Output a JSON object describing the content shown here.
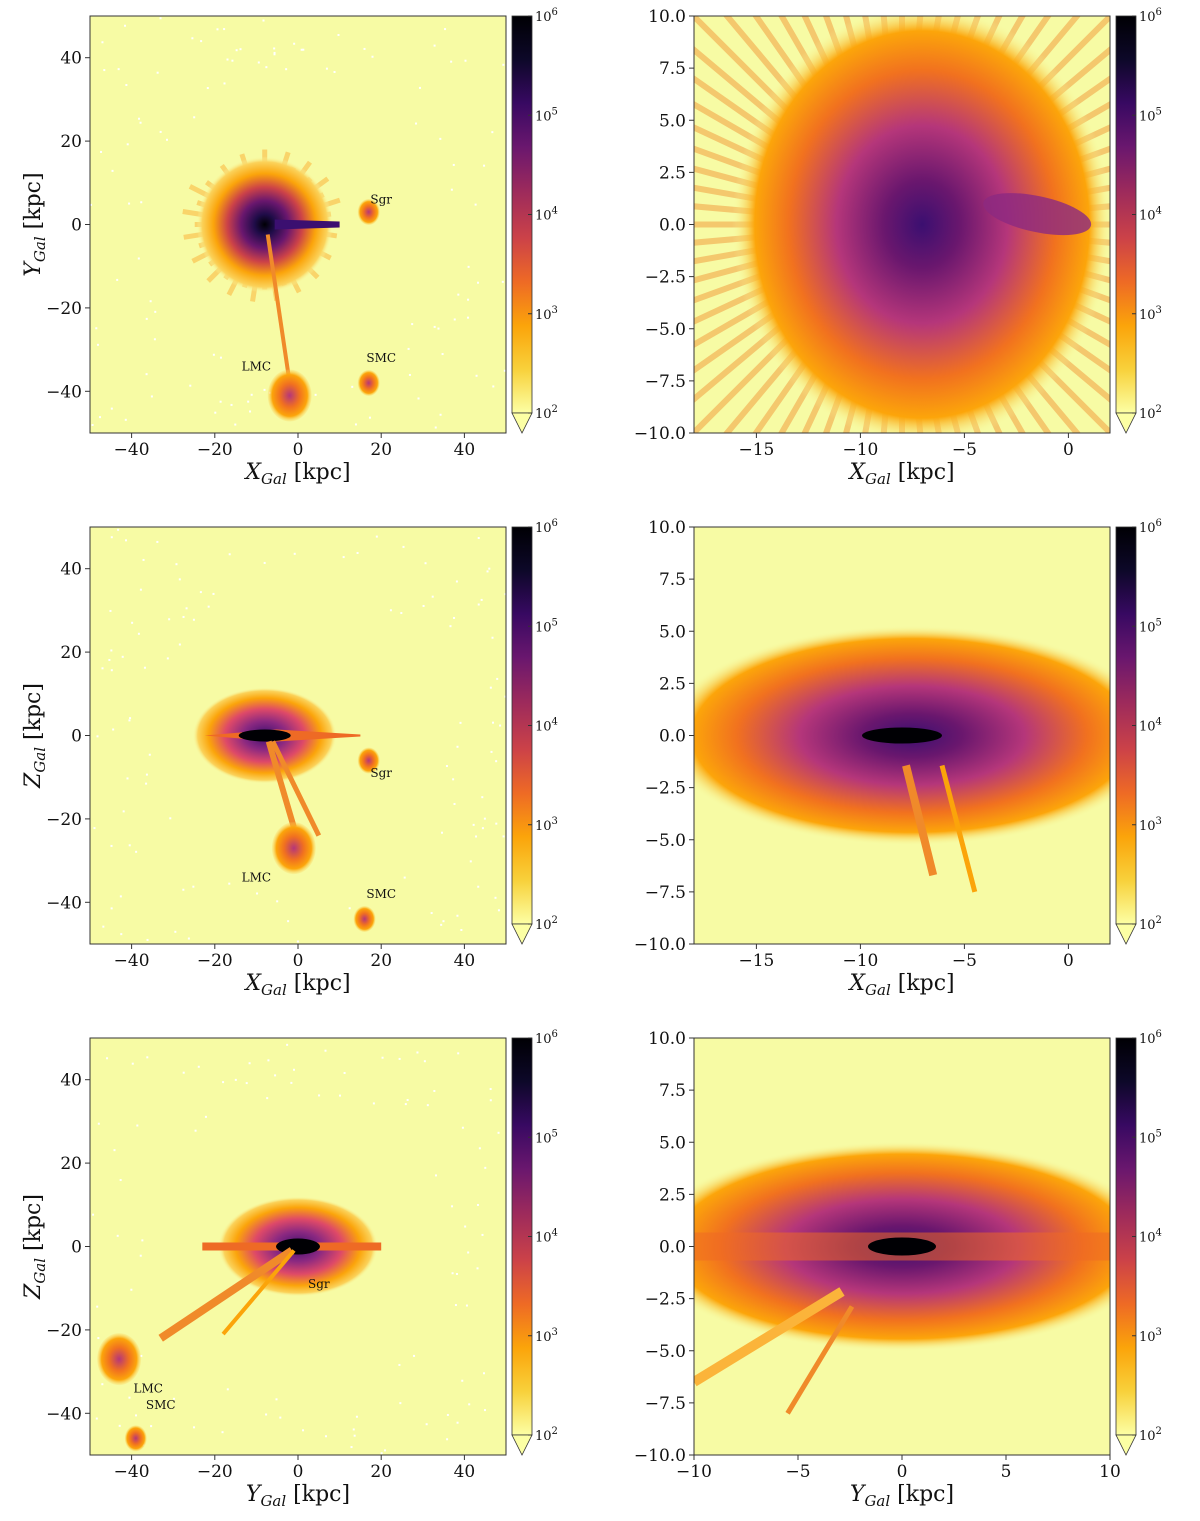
{
  "figure": {
    "colormap": [
      "#fcffa4",
      "#f8d13b",
      "#fba40a",
      "#ee6a25",
      "#cc4248",
      "#9c2a5c",
      "#6a176e",
      "#380962",
      "#0d0829",
      "#000004"
    ],
    "background_color": "#f7fba4"
  },
  "chart_data": [
    {
      "type": "heatmap",
      "xlabel": "X_Gal [kpc]",
      "ylabel": "Y_Gal [kpc]",
      "xlim": [
        -50,
        50
      ],
      "ylim": [
        -50,
        50
      ],
      "xticks": [
        "-40",
        "-20",
        "0",
        "20",
        "40"
      ],
      "yticks": [
        "-40",
        "-20",
        "0",
        "20",
        "40"
      ],
      "colorbar": {
        "scale": "log",
        "range": [
          100,
          1000000
        ],
        "ticks": [
          "10^2",
          "10^3",
          "10^4",
          "10^5",
          "10^6"
        ],
        "extend": "min"
      },
      "annotations": [
        {
          "text": "Sgr",
          "x": 20,
          "y": 5
        },
        {
          "text": "LMC",
          "x": -10,
          "y": -35
        },
        {
          "text": "SMC",
          "x": 20,
          "y": -33
        }
      ],
      "features": [
        {
          "name": "disk-core",
          "x": -8,
          "y": 0,
          "radius": 17
        },
        {
          "name": "LMC",
          "x": -2,
          "y": -41
        },
        {
          "name": "SMC",
          "x": 17,
          "y": -38
        },
        {
          "name": "Sgr",
          "x": 17,
          "y": 3
        }
      ]
    },
    {
      "type": "heatmap",
      "xlabel": "X_Gal [kpc]",
      "ylabel": "",
      "xlim": [
        -18,
        2
      ],
      "ylim": [
        -10,
        10
      ],
      "xticks": [
        "-15",
        "-10",
        "-5",
        "0"
      ],
      "yticks": [
        "-10.0",
        "-7.5",
        "-5.0",
        "-2.5",
        "0.0",
        "2.5",
        "5.0",
        "7.5",
        "10.0"
      ],
      "colorbar": {
        "scale": "log",
        "range": [
          100,
          1000000
        ],
        "ticks": [
          "10^2",
          "10^3",
          "10^4",
          "10^5",
          "10^6"
        ],
        "extend": "min"
      },
      "annotations": [],
      "features": [
        {
          "name": "disk-core",
          "x": -8,
          "y": 0
        }
      ]
    },
    {
      "type": "heatmap",
      "xlabel": "X_Gal [kpc]",
      "ylabel": "Z_Gal [kpc]",
      "xlim": [
        -50,
        50
      ],
      "ylim": [
        -50,
        50
      ],
      "xticks": [
        "-40",
        "-20",
        "0",
        "20",
        "40"
      ],
      "yticks": [
        "-40",
        "-20",
        "0",
        "20",
        "40"
      ],
      "colorbar": {
        "scale": "log",
        "range": [
          100,
          1000000
        ],
        "ticks": [
          "10^2",
          "10^3",
          "10^4",
          "10^5",
          "10^6"
        ],
        "extend": "min"
      },
      "annotations": [
        {
          "text": "Sgr",
          "x": 20,
          "y": -10
        },
        {
          "text": "LMC",
          "x": -10,
          "y": -35
        },
        {
          "text": "SMC",
          "x": 20,
          "y": -39
        }
      ],
      "features": [
        {
          "name": "disk-core",
          "x": -8,
          "y": 0
        },
        {
          "name": "LMC",
          "x": -1,
          "y": -27
        },
        {
          "name": "SMC",
          "x": 16,
          "y": -44
        },
        {
          "name": "Sgr",
          "x": 17,
          "y": -6
        }
      ]
    },
    {
      "type": "heatmap",
      "xlabel": "X_Gal [kpc]",
      "ylabel": "",
      "xlim": [
        -18,
        2
      ],
      "ylim": [
        -10,
        10
      ],
      "xticks": [
        "-15",
        "-10",
        "-5",
        "0"
      ],
      "yticks": [
        "-10.0",
        "-7.5",
        "-5.0",
        "-2.5",
        "0.0",
        "2.5",
        "5.0",
        "7.5",
        "10.0"
      ],
      "colorbar": {
        "scale": "log",
        "range": [
          100,
          1000000
        ],
        "ticks": [
          "10^2",
          "10^3",
          "10^4",
          "10^5",
          "10^6"
        ],
        "extend": "min"
      },
      "annotations": [],
      "features": [
        {
          "name": "disk-core",
          "x": -8,
          "y": 0
        }
      ]
    },
    {
      "type": "heatmap",
      "xlabel": "Y_Gal [kpc]",
      "ylabel": "Z_Gal [kpc]",
      "xlim": [
        -50,
        50
      ],
      "ylim": [
        -50,
        50
      ],
      "xticks": [
        "-40",
        "-20",
        "0",
        "20",
        "40"
      ],
      "yticks": [
        "-40",
        "-20",
        "0",
        "20",
        "40"
      ],
      "colorbar": {
        "scale": "log",
        "range": [
          100,
          1000000
        ],
        "ticks": [
          "10^2",
          "10^3",
          "10^4",
          "10^5",
          "10^6"
        ],
        "extend": "min"
      },
      "annotations": [
        {
          "text": "Sgr",
          "x": 5,
          "y": -10
        },
        {
          "text": "LMC",
          "x": -36,
          "y": -35
        },
        {
          "text": "SMC",
          "x": -33,
          "y": -39
        }
      ],
      "features": [
        {
          "name": "disk-core",
          "x": 0,
          "y": 0
        },
        {
          "name": "LMC",
          "x": -43,
          "y": -27
        },
        {
          "name": "SMC",
          "x": -39,
          "y": -46
        }
      ]
    },
    {
      "type": "heatmap",
      "xlabel": "Y_Gal [kpc]",
      "ylabel": "",
      "xlim": [
        -10,
        10
      ],
      "ylim": [
        -10,
        10
      ],
      "xticks": [
        "-10",
        "-5",
        "0",
        "5",
        "10"
      ],
      "yticks": [
        "-10.0",
        "-7.5",
        "-5.0",
        "-2.5",
        "0.0",
        "2.5",
        "5.0",
        "7.5",
        "10.0"
      ],
      "colorbar": {
        "scale": "log",
        "range": [
          100,
          1000000
        ],
        "ticks": [
          "10^2",
          "10^3",
          "10^4",
          "10^5",
          "10^6"
        ],
        "extend": "min"
      },
      "annotations": [],
      "features": [
        {
          "name": "disk-core",
          "x": 0,
          "y": 0
        }
      ]
    }
  ]
}
